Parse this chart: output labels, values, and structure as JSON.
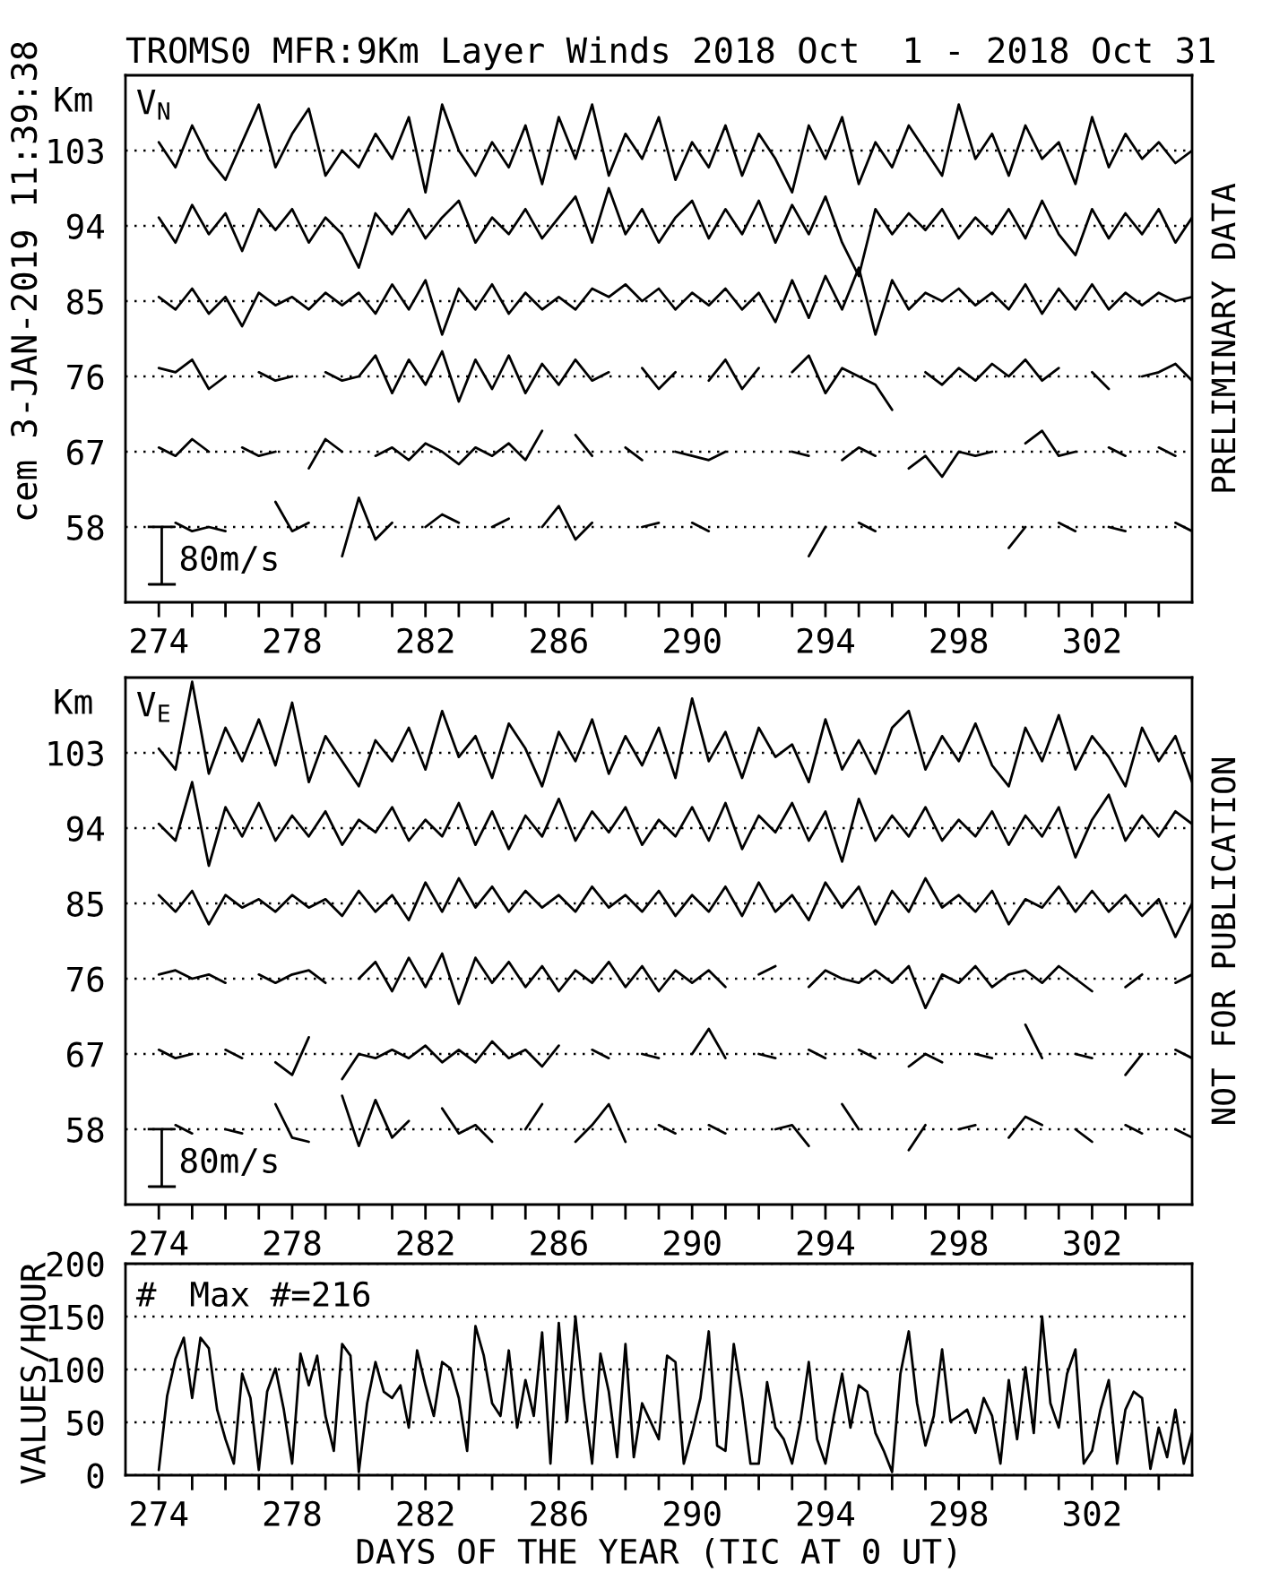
{
  "chart_data": [
    {
      "type": "line",
      "title": "TROMS0 MFR:9Km Layer Winds 2018 Oct  1 - 2018 Oct 31",
      "ylabel": "Km",
      "x": [
        274,
        274.5,
        275,
        275.5,
        276,
        276.5,
        277,
        277.5,
        278,
        278.5,
        279,
        279.5,
        280,
        280.5,
        281,
        281.5,
        282,
        282.5,
        283,
        283.5,
        284,
        284.5,
        285,
        285.5,
        286,
        286.5,
        287,
        287.5,
        288,
        288.5,
        289,
        289.5,
        290,
        290.5,
        291,
        291.5,
        292,
        292.5,
        293,
        293.5,
        294,
        294.5,
        295,
        295.5,
        296,
        296.5,
        297,
        297.5,
        298,
        298.5,
        299,
        299.5,
        300,
        300.5,
        301,
        301.5,
        302,
        302.5,
        303,
        303.5,
        304,
        304.5,
        305
      ],
      "xlim": [
        273,
        305
      ],
      "xticks": [
        274,
        {
          "value": 275,
          "label": null
        },
        {
          "value": 276,
          "label": null
        },
        {
          "value": 277,
          "label": null
        },
        278,
        {
          "value": 279,
          "label": null
        },
        {
          "value": 280,
          "label": null
        },
        {
          "value": 281,
          "label": null
        },
        282,
        {
          "value": 283,
          "label": null
        },
        {
          "value": 284,
          "label": null
        },
        {
          "value": 285,
          "label": null
        },
        286,
        {
          "value": 287,
          "label": null
        },
        {
          "value": 288,
          "label": null
        },
        {
          "value": 289,
          "label": null
        },
        290,
        {
          "value": 291,
          "label": null
        },
        {
          "value": 292,
          "label": null
        },
        {
          "value": 293,
          "label": null
        },
        294,
        {
          "value": 295,
          "label": null
        },
        {
          "value": 296,
          "label": null
        },
        {
          "value": 297,
          "label": null
        },
        298,
        {
          "value": 299,
          "label": null
        },
        {
          "value": 300,
          "label": null
        },
        {
          "value": 301,
          "label": null
        },
        302,
        {
          "value": 303,
          "label": null
        },
        {
          "value": 304,
          "label": null
        }
      ],
      "ylim": [
        49,
        112
      ],
      "yticks": [
        58,
        67,
        76,
        85,
        94,
        103
      ],
      "grid": "y",
      "series": [
        {
          "color": "#000000",
          "values": [
            104,
            101,
            106,
            102,
            99.5,
            104,
            108.5,
            101,
            105,
            108,
            100,
            103,
            101,
            105,
            102,
            107,
            98,
            108.5,
            103,
            100,
            104,
            101,
            106,
            99,
            107,
            102,
            108.5,
            100,
            105,
            102,
            107,
            99.5,
            104,
            101,
            106,
            100,
            105,
            102,
            98,
            106,
            102,
            107,
            99,
            104,
            101,
            106,
            103,
            100,
            108.5,
            102,
            105,
            100,
            106,
            102,
            104,
            99,
            107,
            101,
            105,
            102,
            104,
            101.5,
            103
          ]
        },
        {
          "color": "#000000",
          "values": [
            95,
            92,
            96.5,
            93,
            95.5,
            91,
            96,
            93.5,
            96,
            92,
            95,
            93,
            89,
            95.5,
            93,
            96,
            92.5,
            95,
            97,
            92,
            95,
            93,
            96,
            92.5,
            95,
            97.5,
            92,
            98.5,
            93,
            96,
            92,
            95,
            97,
            92.5,
            96,
            93,
            97,
            92,
            96.5,
            93,
            97.5,
            92,
            88,
            96,
            93,
            95.5,
            93.5,
            96,
            92.5,
            95,
            93,
            96,
            92.5,
            97,
            93,
            90.5,
            96,
            92.5,
            95.5,
            93,
            96,
            92,
            95
          ]
        },
        {
          "color": "#000000",
          "values": [
            85.5,
            84,
            86.5,
            83.5,
            85.5,
            82,
            86,
            84.5,
            85.5,
            84,
            86,
            84.5,
            86,
            83.5,
            87,
            84,
            87.5,
            81,
            86.5,
            84,
            87,
            83.5,
            86,
            84,
            85.5,
            84,
            86.5,
            85.5,
            87,
            85,
            86.5,
            84,
            86,
            84.5,
            86.5,
            84,
            86,
            82.5,
            87.5,
            83,
            88,
            84,
            89,
            81,
            87.5,
            84,
            86,
            85,
            86.5,
            84.5,
            86,
            84,
            87,
            83.5,
            86.5,
            84,
            87,
            84,
            86,
            84.5,
            86,
            85,
            85.5
          ]
        },
        {
          "color": "#000000",
          "values": [
            77,
            76.5,
            78,
            74.5,
            76,
            null,
            76.5,
            75.5,
            76,
            null,
            76.5,
            75.5,
            76,
            78.5,
            74,
            78,
            75,
            79,
            73,
            78,
            74.5,
            78.5,
            74,
            77.5,
            75,
            78,
            75.5,
            76.5,
            null,
            77,
            74.5,
            76.5,
            null,
            75.5,
            78,
            74.5,
            77,
            null,
            76.5,
            78.5,
            74,
            77,
            76,
            75,
            72,
            null,
            76.5,
            75,
            77,
            75.5,
            77.5,
            76,
            78,
            75.5,
            77,
            null,
            76.5,
            74.5,
            null,
            76,
            76.5,
            77.5,
            75.5
          ]
        },
        {
          "color": "#000000",
          "values": [
            67.5,
            66.5,
            68.5,
            67,
            null,
            67.5,
            66.5,
            67,
            null,
            65,
            68.5,
            67,
            null,
            66.5,
            67.5,
            66,
            68,
            67,
            65.5,
            67.5,
            66.5,
            68,
            66,
            69.5,
            null,
            69,
            66.5,
            null,
            67.5,
            66,
            null,
            67,
            66.5,
            66,
            67,
            null,
            null,
            null,
            67,
            66.5,
            null,
            66,
            67.5,
            66.5,
            null,
            65,
            66.5,
            64,
            67,
            66.5,
            67,
            null,
            68,
            69.5,
            66.5,
            67,
            null,
            67.5,
            66.5,
            null,
            67.5,
            66.5,
            null
          ]
        },
        {
          "color": "#000000",
          "values": [
            null,
            58.5,
            57.5,
            58,
            57.5,
            null,
            null,
            61,
            57.5,
            58.5,
            null,
            54.5,
            61.5,
            56.5,
            58.5,
            null,
            58,
            59.5,
            58.5,
            null,
            58,
            59,
            null,
            58,
            60.5,
            56.5,
            58.5,
            null,
            null,
            58,
            58.5,
            null,
            58.5,
            57.5,
            null,
            null,
            null,
            null,
            null,
            54.5,
            58,
            null,
            58.5,
            57.5,
            null,
            null,
            null,
            null,
            null,
            null,
            null,
            55.5,
            58,
            null,
            58.5,
            57.5,
            null,
            58,
            57.5,
            null,
            null,
            58.5,
            57.5
          ]
        }
      ],
      "annotations": [
        "V$_{N}$",
        "80m/s",
        "PRELIMINARY DATA",
        "cem 3-JAN-2019 11:39:38"
      ]
    },
    {
      "type": "line",
      "ylabel": "Km",
      "x": [
        274,
        274.5,
        275,
        275.5,
        276,
        276.5,
        277,
        277.5,
        278,
        278.5,
        279,
        279.5,
        280,
        280.5,
        281,
        281.5,
        282,
        282.5,
        283,
        283.5,
        284,
        284.5,
        285,
        285.5,
        286,
        286.5,
        287,
        287.5,
        288,
        288.5,
        289,
        289.5,
        290,
        290.5,
        291,
        291.5,
        292,
        292.5,
        293,
        293.5,
        294,
        294.5,
        295,
        295.5,
        296,
        296.5,
        297,
        297.5,
        298,
        298.5,
        299,
        299.5,
        300,
        300.5,
        301,
        301.5,
        302,
        302.5,
        303,
        303.5,
        304,
        304.5,
        305
      ],
      "xlim": [
        273,
        305
      ],
      "xticks": [
        274,
        {
          "value": 275,
          "label": null
        },
        {
          "value": 276,
          "label": null
        },
        {
          "value": 277,
          "label": null
        },
        278,
        {
          "value": 279,
          "label": null
        },
        {
          "value": 280,
          "label": null
        },
        {
          "value": 281,
          "label": null
        },
        282,
        {
          "value": 283,
          "label": null
        },
        {
          "value": 284,
          "label": null
        },
        {
          "value": 285,
          "label": null
        },
        286,
        {
          "value": 287,
          "label": null
        },
        {
          "value": 288,
          "label": null
        },
        {
          "value": 289,
          "label": null
        },
        290,
        {
          "value": 291,
          "label": null
        },
        {
          "value": 292,
          "label": null
        },
        {
          "value": 293,
          "label": null
        },
        294,
        {
          "value": 295,
          "label": null
        },
        {
          "value": 296,
          "label": null
        },
        {
          "value": 297,
          "label": null
        },
        298,
        {
          "value": 299,
          "label": null
        },
        {
          "value": 300,
          "label": null
        },
        {
          "value": 301,
          "label": null
        },
        302,
        {
          "value": 303,
          "label": null
        },
        {
          "value": 304,
          "label": null
        }
      ],
      "ylim": [
        49,
        112
      ],
      "yticks": [
        58,
        67,
        76,
        85,
        94,
        103
      ],
      "grid": "y",
      "series": [
        {
          "color": "#000000",
          "values": [
            103.5,
            101,
            111.5,
            100.5,
            106,
            102,
            107,
            101.5,
            109,
            99.5,
            105,
            102,
            99,
            104.5,
            102,
            106,
            101,
            108,
            102.5,
            105,
            100,
            106.5,
            103.5,
            99,
            105.5,
            102,
            107,
            100.5,
            105,
            101.5,
            106,
            100,
            109.5,
            102,
            105.5,
            100,
            106,
            102.5,
            104,
            99.5,
            107,
            101,
            104.5,
            100.5,
            106,
            108,
            101,
            105,
            102,
            106.5,
            101.5,
            99,
            106,
            102,
            107.5,
            101,
            105,
            102.5,
            99,
            106,
            102,
            105,
            99.5
          ]
        },
        {
          "color": "#000000",
          "values": [
            94.5,
            92.5,
            99.5,
            89.5,
            96.5,
            93,
            97,
            92.5,
            95.5,
            93,
            96,
            92,
            95,
            93.5,
            96.5,
            92.5,
            95,
            93,
            97,
            92,
            96,
            91.5,
            95.5,
            93,
            97.5,
            92.5,
            96,
            93.5,
            96.5,
            92,
            95,
            93,
            96.5,
            92.5,
            97,
            91.5,
            95.5,
            93.5,
            97,
            92.5,
            96,
            90,
            97.5,
            92.5,
            95.5,
            93,
            96.5,
            92.5,
            95,
            93,
            96,
            92,
            95.5,
            93,
            96.5,
            90.5,
            95,
            98,
            92.5,
            95.5,
            93,
            96,
            94.5
          ]
        },
        {
          "color": "#000000",
          "values": [
            86,
            84,
            86.5,
            82.5,
            86,
            84.5,
            85.5,
            84,
            86,
            84.5,
            85.5,
            83.5,
            86.5,
            84,
            86,
            83,
            87.5,
            84,
            88,
            84.5,
            87,
            84,
            86.5,
            84.5,
            86,
            84,
            87,
            84.5,
            86,
            84,
            86.5,
            83.5,
            86,
            84,
            87,
            83.5,
            87.5,
            84,
            86,
            83,
            87.5,
            84.5,
            87,
            82.5,
            86.5,
            84,
            88,
            84.5,
            86,
            84,
            86.5,
            82.5,
            85.5,
            84.5,
            87,
            84,
            86.5,
            84,
            86,
            83.5,
            85.5,
            81,
            85
          ]
        },
        {
          "color": "#000000",
          "values": [
            76.5,
            77,
            76,
            76.5,
            75.5,
            null,
            76.5,
            75.5,
            76.5,
            77,
            75.5,
            null,
            76,
            78,
            74.5,
            78.5,
            75,
            79,
            73,
            78.5,
            75.5,
            78,
            75,
            77.5,
            74.5,
            77,
            75.5,
            78,
            75,
            77.5,
            74.5,
            77,
            75.5,
            77,
            75,
            null,
            76.5,
            77.5,
            null,
            75,
            77,
            76,
            75.5,
            77,
            75.5,
            77.5,
            72.5,
            76.5,
            75.5,
            77.5,
            75,
            76.5,
            77,
            75.5,
            77.5,
            76,
            74.5,
            null,
            75,
            76.5,
            null,
            75.5,
            76.5
          ]
        },
        {
          "color": "#000000",
          "values": [
            67.5,
            66.5,
            67,
            null,
            67.5,
            66.5,
            null,
            66,
            64.5,
            69,
            null,
            64,
            67,
            66.5,
            67.5,
            66.5,
            68,
            66,
            67.5,
            66,
            68.5,
            66.5,
            67.5,
            65.5,
            68,
            null,
            67.5,
            66.5,
            null,
            67,
            66.5,
            null,
            67,
            70,
            66.5,
            null,
            67,
            66.5,
            null,
            67.5,
            66.5,
            null,
            67.5,
            66.5,
            null,
            65.5,
            67,
            66,
            null,
            67,
            66.5,
            null,
            70.5,
            66.5,
            null,
            67,
            66.5,
            null,
            64.5,
            67,
            null,
            67.5,
            66.5
          ]
        },
        {
          "color": "#000000",
          "values": [
            null,
            58.5,
            57.5,
            null,
            58,
            57.5,
            null,
            61,
            57,
            56.5,
            null,
            62,
            56,
            61.5,
            57,
            59,
            null,
            60.5,
            57.5,
            58.5,
            56.5,
            null,
            58,
            61,
            null,
            56.5,
            58.5,
            61,
            56.5,
            null,
            58.5,
            57.5,
            null,
            58.5,
            57.5,
            null,
            null,
            58,
            58.5,
            56,
            null,
            61,
            58,
            null,
            null,
            55.5,
            58.5,
            null,
            58,
            58.5,
            null,
            57,
            59.5,
            58.5,
            null,
            58,
            56.5,
            null,
            58.5,
            57.5,
            null,
            58,
            57
          ]
        }
      ],
      "annotations": [
        "V$_{E}$",
        "80m/s",
        "NOT FOR PUBLICATION"
      ]
    },
    {
      "type": "line",
      "ylabel": "VALUES/HOUR",
      "xlabel": "DAYS OF THE YEAR (TIC AT 0 UT)",
      "x": [
        274,
        274.25,
        274.5,
        274.75,
        275,
        275.25,
        275.5,
        275.75,
        276,
        276.25,
        276.5,
        276.75,
        277,
        277.25,
        277.5,
        277.75,
        278,
        278.25,
        278.5,
        278.75,
        279,
        279.25,
        279.5,
        279.75,
        280,
        280.25,
        280.5,
        280.75,
        281,
        281.25,
        281.5,
        281.75,
        282,
        282.25,
        282.5,
        282.75,
        283,
        283.25,
        283.5,
        283.75,
        284,
        284.25,
        284.5,
        284.75,
        285,
        285.25,
        285.5,
        285.75,
        286,
        286.25,
        286.5,
        286.75,
        287,
        287.25,
        287.5,
        287.75,
        288,
        288.25,
        288.5,
        288.75,
        289,
        289.25,
        289.5,
        289.75,
        290,
        290.25,
        290.5,
        290.75,
        291,
        291.25,
        291.5,
        291.75,
        292,
        292.25,
        292.5,
        292.75,
        293,
        293.25,
        293.5,
        293.75,
        294,
        294.25,
        294.5,
        294.75,
        295,
        295.25,
        295.5,
        295.75,
        296,
        296.25,
        296.5,
        296.75,
        297,
        297.25,
        297.5,
        297.75,
        298,
        298.25,
        298.5,
        298.75,
        299,
        299.25,
        299.5,
        299.75,
        300,
        300.25,
        300.5,
        300.75,
        301,
        301.25,
        301.5,
        301.75,
        302,
        302.25,
        302.5,
        302.75,
        303,
        303.25,
        303.5,
        303.75,
        304,
        304.25,
        304.5,
        304.75,
        305
      ],
      "values": [
        5,
        75,
        110,
        130,
        73,
        130,
        120,
        62,
        34,
        11,
        96,
        73,
        5,
        79,
        101,
        62,
        11,
        115,
        85,
        113,
        56,
        23,
        124,
        113,
        3,
        68,
        107,
        79,
        73,
        85,
        45,
        118,
        85,
        56,
        107,
        101,
        73,
        23,
        141,
        113,
        68,
        56,
        118,
        45,
        90,
        56,
        135,
        11,
        144,
        51,
        150,
        73,
        11,
        115,
        79,
        17,
        124,
        17,
        68,
        51,
        34,
        113,
        107,
        11,
        40,
        73,
        136,
        28,
        23,
        124,
        73,
        11,
        11,
        88,
        45,
        34,
        11,
        51,
        107,
        34,
        11,
        56,
        96,
        45,
        85,
        79,
        40,
        23,
        3,
        96,
        136,
        68,
        28,
        56,
        119,
        51,
        56,
        62,
        40,
        73,
        56,
        11,
        90,
        34,
        102,
        40,
        150,
        68,
        45,
        96,
        119,
        11,
        23,
        62,
        90,
        11,
        62,
        79,
        73,
        6,
        45,
        17,
        62,
        11,
        40
      ],
      "color": "#000000",
      "xlim": [
        273,
        305
      ],
      "xticks": [
        274,
        {
          "value": 275,
          "label": null
        },
        {
          "value": 276,
          "label": null
        },
        {
          "value": 277,
          "label": null
        },
        278,
        {
          "value": 279,
          "label": null
        },
        {
          "value": 280,
          "label": null
        },
        {
          "value": 281,
          "label": null
        },
        282,
        {
          "value": 283,
          "label": null
        },
        {
          "value": 284,
          "label": null
        },
        {
          "value": 285,
          "label": null
        },
        286,
        {
          "value": 287,
          "label": null
        },
        {
          "value": 288,
          "label": null
        },
        {
          "value": 289,
          "label": null
        },
        290,
        {
          "value": 291,
          "label": null
        },
        {
          "value": 292,
          "label": null
        },
        {
          "value": 293,
          "label": null
        },
        294,
        {
          "value": 295,
          "label": null
        },
        {
          "value": 296,
          "label": null
        },
        {
          "value": 297,
          "label": null
        },
        298,
        {
          "value": 299,
          "label": null
        },
        {
          "value": 300,
          "label": null
        },
        {
          "value": 301,
          "label": null
        },
        302,
        {
          "value": 303,
          "label": null
        },
        {
          "value": 304,
          "label": null
        }
      ],
      "ylim": [
        0,
        200
      ],
      "yticks": [
        0,
        50,
        100,
        150,
        200
      ],
      "grid": "y",
      "annotations": [
        "#",
        "Max #=216"
      ]
    }
  ]
}
